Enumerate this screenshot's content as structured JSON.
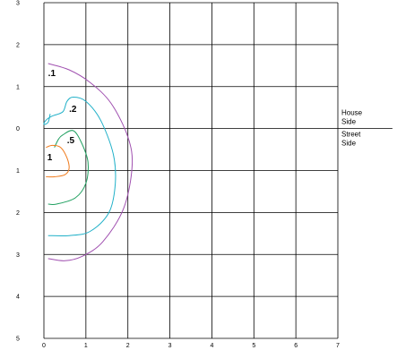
{
  "chart_data": {
    "type": "line",
    "chart_kind": "contour",
    "title": "",
    "xlabel": "",
    "ylabel": "",
    "xlim": [
      0,
      7
    ],
    "ylim": [
      -5,
      3
    ],
    "grid": true,
    "x_ticks": [
      "0",
      "1",
      "2",
      "3",
      "4",
      "5",
      "6",
      "7"
    ],
    "y_ticks": [
      {
        "value": 3,
        "label": "3"
      },
      {
        "value": 2,
        "label": "2"
      },
      {
        "value": 1,
        "label": "1"
      },
      {
        "value": 0,
        "label": "0"
      },
      {
        "value": -1,
        "label": "1"
      },
      {
        "value": -2,
        "label": "2"
      },
      {
        "value": -3,
        "label": "3"
      },
      {
        "value": -4,
        "label": "4"
      },
      {
        "value": -5,
        "label": "5"
      }
    ],
    "divider": {
      "y": 0,
      "x_from": 7,
      "x_to": 8.3,
      "upper_label": [
        "House",
        "Side"
      ],
      "lower_label": [
        "Street",
        "Side"
      ]
    },
    "series": [
      {
        "label": ".1",
        "color": "#a050b0",
        "label_at": [
          0.1,
          1.25
        ],
        "points": [
          [
            0.1,
            1.55
          ],
          [
            0.6,
            1.4
          ],
          [
            1.1,
            1.1
          ],
          [
            1.6,
            0.6
          ],
          [
            2.0,
            -0.2
          ],
          [
            2.1,
            -0.9
          ],
          [
            1.9,
            -1.9
          ],
          [
            1.4,
            -2.7
          ],
          [
            0.9,
            -3.05
          ],
          [
            0.5,
            -3.15
          ],
          [
            0.1,
            -3.1
          ]
        ]
      },
      {
        "label": ".2",
        "color": "#20b0c8",
        "label_at": [
          0.6,
          0.4
        ],
        "points": [
          [
            0.15,
            0.35
          ],
          [
            0.1,
            0.15
          ],
          [
            0.0,
            0.1
          ],
          [
            0.05,
            0.2
          ],
          [
            0.2,
            0.3
          ],
          [
            0.45,
            0.4
          ],
          [
            0.55,
            0.65
          ],
          [
            0.7,
            0.75
          ],
          [
            1.0,
            0.65
          ],
          [
            1.35,
            0.2
          ],
          [
            1.65,
            -0.6
          ],
          [
            1.7,
            -1.3
          ],
          [
            1.55,
            -2.0
          ],
          [
            1.1,
            -2.45
          ],
          [
            0.6,
            -2.55
          ],
          [
            0.1,
            -2.55
          ]
        ]
      },
      {
        "label": ".5",
        "color": "#20a060",
        "label_at": [
          0.55,
          -0.35
        ],
        "points": [
          [
            0.25,
            -0.45
          ],
          [
            0.35,
            -0.25
          ],
          [
            0.45,
            -0.15
          ],
          [
            0.7,
            -0.05
          ],
          [
            0.9,
            -0.35
          ],
          [
            1.05,
            -0.8
          ],
          [
            1.0,
            -1.3
          ],
          [
            0.75,
            -1.65
          ],
          [
            0.3,
            -1.8
          ],
          [
            0.1,
            -1.8
          ]
        ]
      },
      {
        "label": "1",
        "color": "#f07a1a",
        "label_at": [
          0.08,
          -0.75
        ],
        "points": [
          [
            0.05,
            -0.45
          ],
          [
            0.2,
            -0.4
          ],
          [
            0.4,
            -0.45
          ],
          [
            0.55,
            -0.7
          ],
          [
            0.6,
            -0.95
          ],
          [
            0.5,
            -1.1
          ],
          [
            0.25,
            -1.15
          ],
          [
            0.05,
            -1.15
          ]
        ]
      }
    ]
  }
}
